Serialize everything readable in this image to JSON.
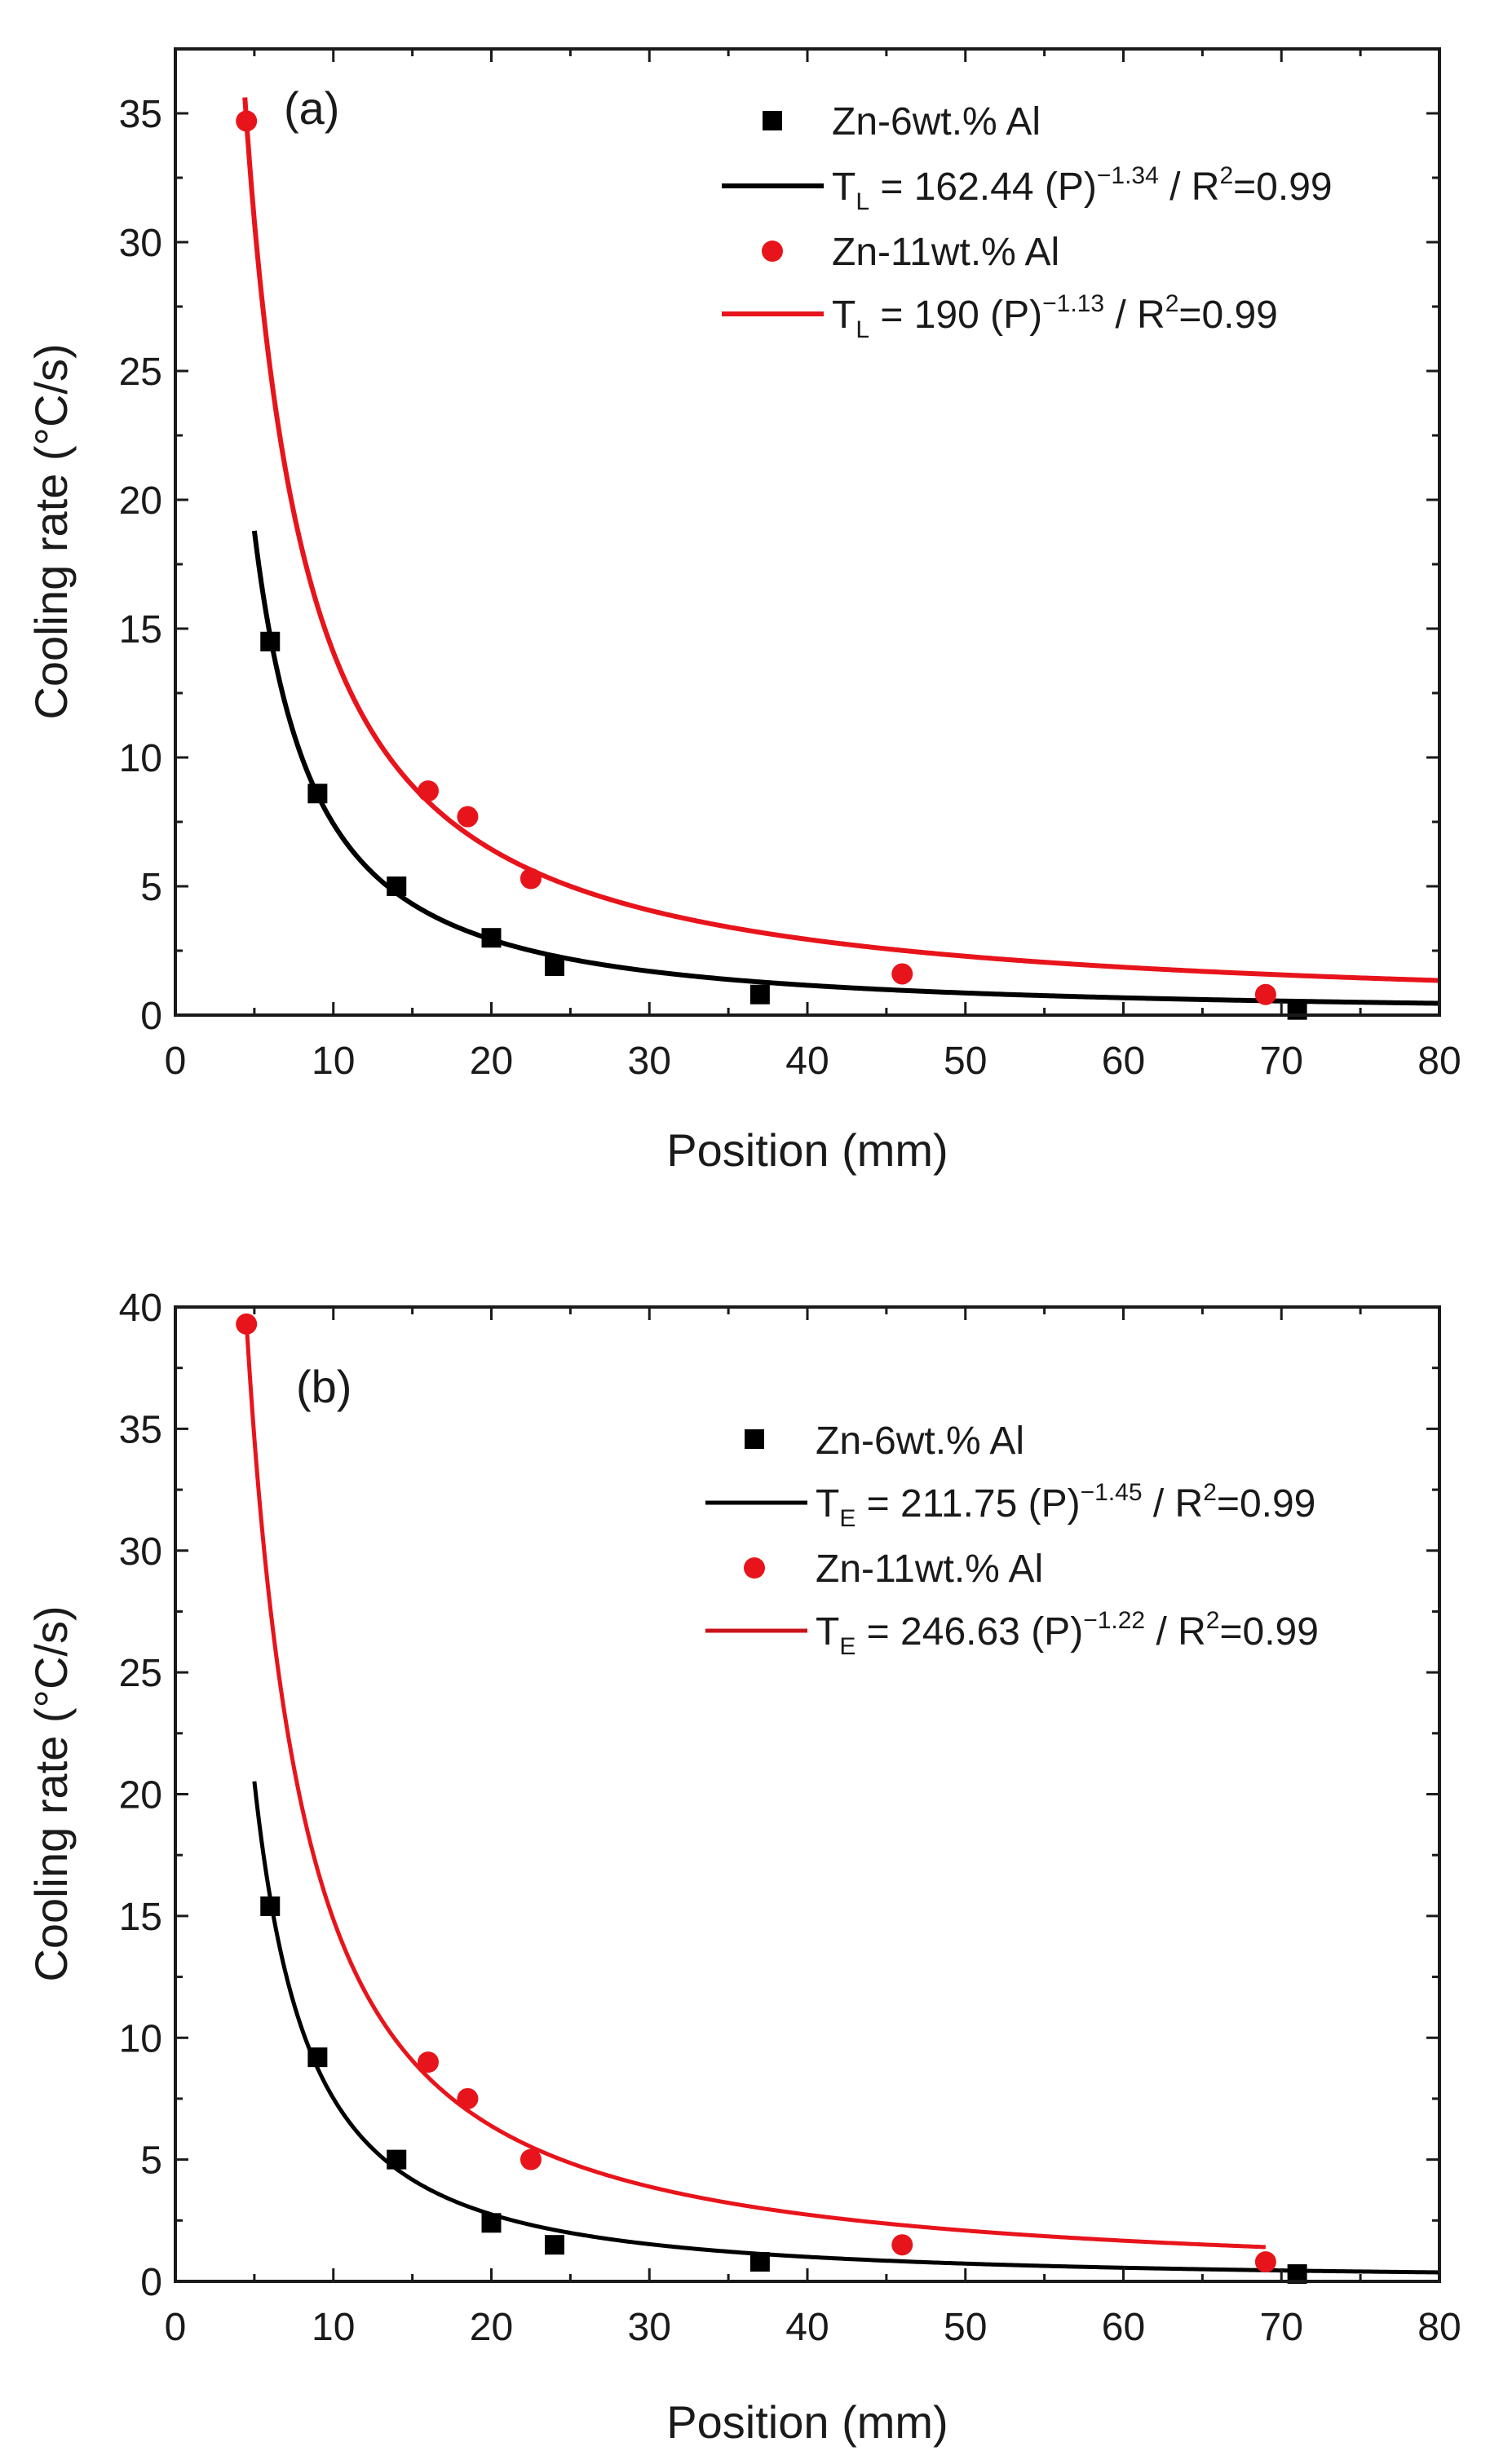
{
  "chart_data": [
    {
      "type": "scatter",
      "panel_label": "(a)",
      "xlabel": "Position (mm)",
      "ylabel": "Cooling rate (°C/s)",
      "xlim": [
        0,
        80
      ],
      "ylim": [
        0,
        37.5
      ],
      "xticks": [
        0,
        10,
        20,
        30,
        40,
        50,
        60,
        70,
        80
      ],
      "yticks": [
        0,
        5,
        10,
        15,
        20,
        25,
        30,
        35
      ],
      "legend_position": "top-right",
      "series": [
        {
          "name": "Zn-6wt.% Al",
          "marker": "square",
          "color": "#000000",
          "x": [
            6,
            9,
            14,
            20,
            24,
            37,
            71
          ],
          "y": [
            14.5,
            8.6,
            5.0,
            3.0,
            1.9,
            0.8,
            0.2
          ]
        },
        {
          "name": "Zn-11wt.% Al",
          "marker": "circle",
          "color": "#e8141b",
          "x": [
            4.5,
            16,
            18.5,
            22.5,
            46,
            69
          ],
          "y": [
            34.7,
            8.7,
            7.7,
            5.3,
            1.6,
            0.8
          ]
        }
      ],
      "fits": [
        {
          "label_var": "T",
          "label_sub": "L",
          "label_main": " = 162.44 (P)",
          "label_exp": "−1.34",
          "label_r2_pre": " / R",
          "label_r2_exp": "2",
          "label_r2_post": "=0.99",
          "coefficient": 162.44,
          "exponent": -1.34,
          "x_range": [
            5,
            80
          ],
          "color": "#000000"
        },
        {
          "label_var": "T",
          "label_sub": "L",
          "label_main": " = 190 (P)",
          "label_exp": "−1.13",
          "label_r2_pre": " / R",
          "label_r2_exp": "2",
          "label_r2_post": "=0.99",
          "coefficient": 190,
          "exponent": -1.13,
          "x_range": [
            4.4,
            80
          ],
          "color": "#e8141b"
        }
      ]
    },
    {
      "type": "scatter",
      "panel_label": "(b)",
      "xlabel": "Position (mm)",
      "ylabel": "Cooling rate (°C/s)",
      "xlim": [
        0,
        80
      ],
      "ylim": [
        0,
        40
      ],
      "xticks": [
        0,
        10,
        20,
        30,
        40,
        50,
        60,
        70,
        80
      ],
      "yticks": [
        0,
        5,
        10,
        15,
        20,
        25,
        30,
        35,
        40
      ],
      "legend_position": "center-right",
      "series": [
        {
          "name": "Zn-6wt.% Al",
          "marker": "square",
          "color": "#000000",
          "x": [
            6,
            9,
            14,
            20,
            24,
            37,
            71
          ],
          "y": [
            15.4,
            9.2,
            5.0,
            2.4,
            1.5,
            0.8,
            0.3
          ]
        },
        {
          "name": "Zn-11wt.% Al",
          "marker": "circle",
          "color": "#e8141b",
          "x": [
            4.5,
            16,
            18.5,
            22.5,
            46,
            69
          ],
          "y": [
            39.3,
            9.0,
            7.5,
            5.0,
            1.5,
            0.8
          ]
        }
      ],
      "fits": [
        {
          "label_var": "T",
          "label_sub": "E",
          "label_main": " = 211.75 (P)",
          "label_exp": "−1.45",
          "label_r2_pre": " / R",
          "label_r2_exp": "2",
          "label_r2_post": "=0.99",
          "coefficient": 211.75,
          "exponent": -1.45,
          "x_range": [
            5,
            80
          ],
          "color": "#000000"
        },
        {
          "label_var": "T",
          "label_sub": "E",
          "label_main": " = 246.63 (P)",
          "label_exp": "−1.22",
          "label_r2_pre": " / R",
          "label_r2_exp": "2",
          "label_r2_post": "=0.99",
          "coefficient": 246.63,
          "exponent": -1.22,
          "x_range": [
            4.5,
            69
          ],
          "color": "#e8141b"
        }
      ]
    }
  ]
}
